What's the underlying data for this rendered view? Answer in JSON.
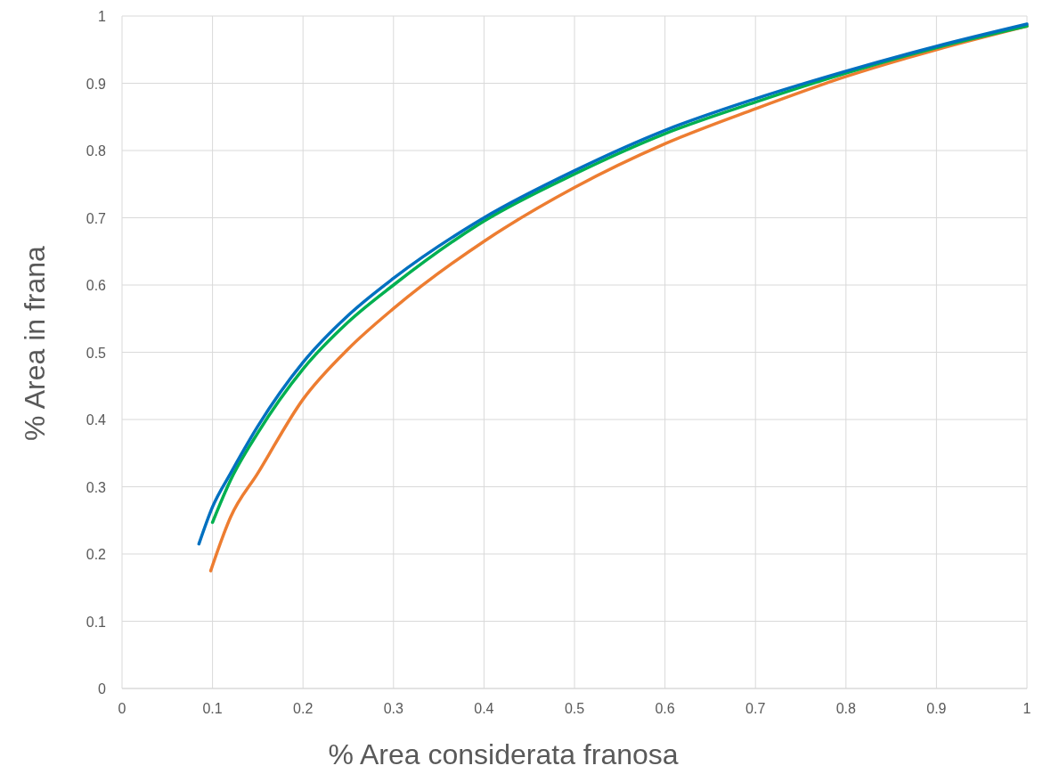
{
  "chart_data": {
    "type": "line",
    "xlabel": "% Area considerata franosa",
    "ylabel": "% Area in frana",
    "xlim": [
      0,
      1
    ],
    "ylim": [
      0,
      1
    ],
    "xticks": [
      0,
      0.1,
      0.2,
      0.3,
      0.4,
      0.5,
      0.6,
      0.7,
      0.8,
      0.9,
      1
    ],
    "yticks": [
      0,
      0.1,
      0.2,
      0.3,
      0.4,
      0.5,
      0.6,
      0.7,
      0.8,
      0.9,
      1
    ],
    "grid": true,
    "marker": "none",
    "line_style": "solid",
    "series": [
      {
        "color": "#ed7d31",
        "x": [
          0.098,
          0.12,
          0.15,
          0.2,
          0.25,
          0.3,
          0.4,
          0.5,
          0.6,
          0.7,
          0.8,
          0.9,
          1
        ],
        "values": [
          0.175,
          0.255,
          0.32,
          0.43,
          0.505,
          0.565,
          0.665,
          0.745,
          0.81,
          0.862,
          0.91,
          0.95,
          0.985
        ]
      },
      {
        "color": "#00b050",
        "x": [
          0.1,
          0.12,
          0.15,
          0.2,
          0.25,
          0.3,
          0.4,
          0.5,
          0.6,
          0.7,
          0.8,
          0.9,
          1
        ],
        "values": [
          0.247,
          0.31,
          0.38,
          0.475,
          0.545,
          0.6,
          0.695,
          0.765,
          0.825,
          0.872,
          0.915,
          0.953,
          0.985
        ]
      },
      {
        "color": "#0070c0",
        "x": [
          0.085,
          0.1,
          0.12,
          0.15,
          0.2,
          0.25,
          0.3,
          0.4,
          0.5,
          0.6,
          0.7,
          0.8,
          0.9,
          1
        ],
        "values": [
          0.215,
          0.27,
          0.32,
          0.39,
          0.485,
          0.555,
          0.61,
          0.7,
          0.77,
          0.83,
          0.877,
          0.918,
          0.955,
          0.988
        ]
      }
    ]
  }
}
